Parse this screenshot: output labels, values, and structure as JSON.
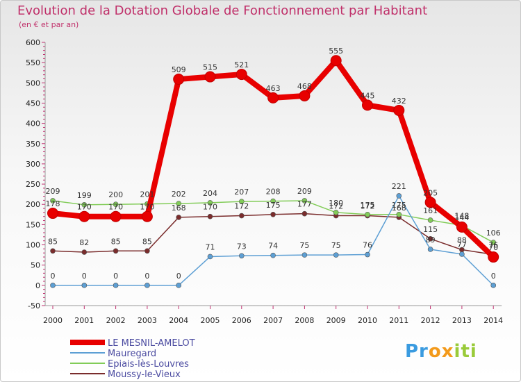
{
  "chart_data": {
    "type": "line",
    "title": "Evolution de la Dotation Globale de Fonctionnement par Habitant",
    "subtitle": "(en € et par an)",
    "xlabel": "",
    "ylabel": "",
    "categories": [
      "2000",
      "2001",
      "2002",
      "2003",
      "2004",
      "2005",
      "2006",
      "2007",
      "2008",
      "2009",
      "2010",
      "2011",
      "2012",
      "2013",
      "2014"
    ],
    "ylim": [
      -50,
      600
    ],
    "yticks": [
      -50,
      0,
      50,
      100,
      150,
      200,
      250,
      300,
      350,
      400,
      450,
      500,
      550,
      600
    ],
    "grid": false,
    "legend_position": "bottom-left",
    "series": [
      {
        "name": "LE MESNIL-AMELOT",
        "color": "#e80000",
        "values": [
          178,
          170,
          170,
          170,
          509,
          515,
          521,
          463,
          468,
          555,
          445,
          432,
          205,
          144,
          70
        ]
      },
      {
        "name": "Mauregard",
        "color": "#5d9fd4",
        "values": [
          0,
          0,
          0,
          0,
          0,
          71,
          73,
          74,
          75,
          75,
          76,
          221,
          89,
          77,
          0
        ]
      },
      {
        "name": "Epiais-lès-Louvres",
        "color": "#82cc58",
        "values": [
          209,
          199,
          200,
          201,
          202,
          204,
          207,
          208,
          209,
          180,
          175,
          175,
          161,
          148,
          106
        ]
      },
      {
        "name": "Moussy-le-Vieux",
        "color": "#7a2c2c",
        "values": [
          85,
          82,
          85,
          85,
          168,
          170,
          172,
          175,
          177,
          172,
          172,
          168,
          115,
          88,
          76
        ]
      }
    ],
    "data_labels": [
      [
        "178",
        "170",
        "170",
        "170",
        "509",
        "515",
        "521",
        "463",
        "468",
        "555",
        "445",
        "432",
        "205",
        "144",
        "70"
      ],
      [
        "0",
        "0",
        "0",
        "0",
        "0",
        "71",
        "73",
        "74",
        "75",
        "75",
        "76",
        "221",
        "89",
        "77",
        "0"
      ],
      [
        "209",
        "199",
        "200",
        "201",
        "202",
        "204",
        "207",
        "208",
        "209",
        "180",
        "175",
        "175",
        "161",
        "148",
        "106"
      ],
      [
        "85",
        "82",
        "85",
        "85",
        "168",
        "170",
        "172",
        "175",
        "177",
        "172",
        "172",
        "168",
        "115",
        "88",
        "76"
      ]
    ]
  },
  "logo": {
    "p": "Pr",
    "o": "o",
    "x": "x",
    "i": "iti"
  }
}
